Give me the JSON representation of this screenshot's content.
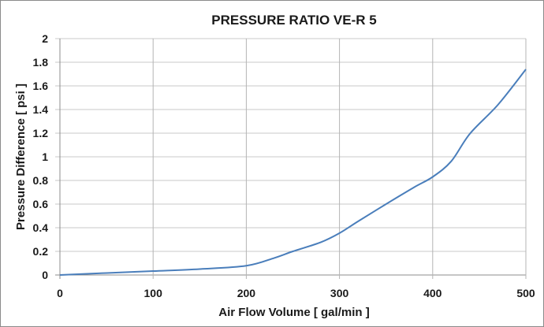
{
  "chart_data": {
    "type": "line",
    "title": "PRESSURE RATIO  VE-R 5",
    "xlabel": "Air Flow Volume  [ gal/min ]",
    "ylabel": "Pressure Difference  [ psi ]",
    "xlim": [
      0,
      500
    ],
    "ylim": [
      0,
      2
    ],
    "xticks": [
      0,
      100,
      200,
      300,
      400,
      500
    ],
    "xtick_labels": [
      "0",
      "100",
      "200",
      "300",
      "400",
      "500"
    ],
    "yticks": [
      0,
      0.2,
      0.4,
      0.6,
      0.8,
      1,
      1.2,
      1.4,
      1.6,
      1.8,
      2
    ],
    "ytick_labels": [
      "0",
      "0.2",
      "0.4",
      "0.6",
      "0.8",
      "1",
      "1.2",
      "1.4",
      "1.6",
      "1.8",
      "2"
    ],
    "grid": true,
    "legend": "none",
    "series": [
      {
        "name": "VE-R 5",
        "color": "#4a7ebb",
        "x": [
          0,
          50,
          100,
          150,
          200,
          230,
          250,
          280,
          300,
          320,
          350,
          380,
          400,
          420,
          440,
          470,
          500
        ],
        "y": [
          0,
          0.017,
          0.033,
          0.05,
          0.078,
          0.144,
          0.2,
          0.277,
          0.354,
          0.454,
          0.6,
          0.742,
          0.83,
          0.963,
          1.196,
          1.44,
          1.74
        ]
      }
    ]
  }
}
